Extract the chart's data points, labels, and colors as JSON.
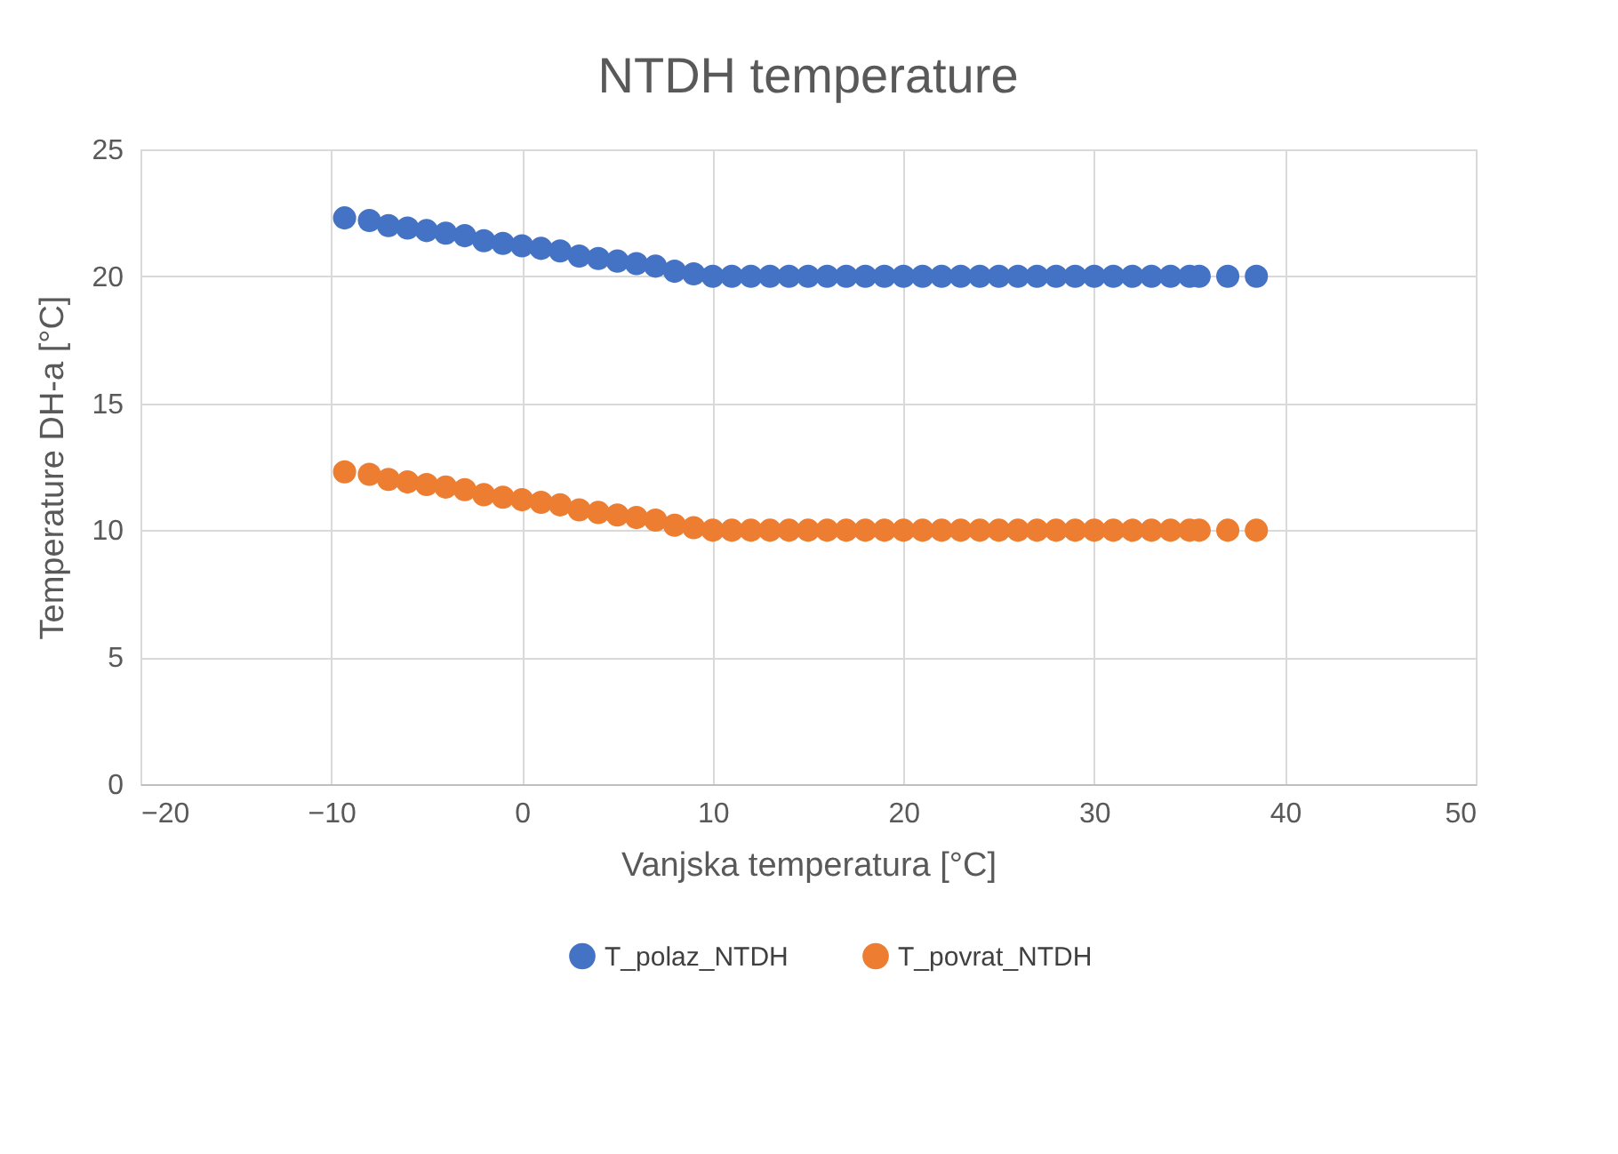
{
  "chart_data": {
    "type": "scatter",
    "title": "NTDH temperature",
    "xlabel": "Vanjska temperatura [°C]",
    "ylabel": "Temperature DH-a [°C]",
    "x": [
      -9.3,
      -8,
      -7,
      -6,
      -5,
      -4,
      -3,
      -2,
      -1,
      0,
      1,
      2,
      3,
      4,
      5,
      6,
      7,
      8,
      9,
      10,
      11,
      12,
      13,
      14,
      15,
      16,
      17,
      18,
      19,
      20,
      21,
      22,
      23,
      24,
      25,
      26,
      27,
      28,
      29,
      30,
      31,
      32,
      33,
      34,
      35,
      35.5,
      37,
      38.5
    ],
    "series": [
      {
        "name": "T_polaz_NTDH",
        "color": "#4472c4",
        "values": [
          22.3,
          22.2,
          22.0,
          21.9,
          21.8,
          21.7,
          21.6,
          21.4,
          21.3,
          21.2,
          21.1,
          21.0,
          20.8,
          20.7,
          20.6,
          20.5,
          20.4,
          20.2,
          20.1,
          20.0,
          20,
          20,
          20,
          20,
          20,
          20,
          20,
          20,
          20,
          20,
          20,
          20,
          20,
          20,
          20,
          20,
          20,
          20,
          20,
          20,
          20,
          20,
          20,
          20,
          20,
          20,
          20,
          20
        ]
      },
      {
        "name": "T_povrat_NTDH",
        "color": "#ed7d31",
        "values": [
          12.3,
          12.2,
          12.0,
          11.9,
          11.8,
          11.7,
          11.6,
          11.4,
          11.3,
          11.2,
          11.1,
          11.0,
          10.8,
          10.7,
          10.6,
          10.5,
          10.4,
          10.2,
          10.1,
          10.0,
          10,
          10,
          10,
          10,
          10,
          10,
          10,
          10,
          10,
          10,
          10,
          10,
          10,
          10,
          10,
          10,
          10,
          10,
          10,
          10,
          10,
          10,
          10,
          10,
          10,
          10,
          10,
          10
        ]
      }
    ],
    "xlim": [
      -20,
      50
    ],
    "xticks": [
      -20,
      -10,
      0,
      10,
      20,
      30,
      40,
      50
    ],
    "ylim": [
      0,
      25
    ],
    "yticks": [
      0,
      5,
      10,
      15,
      20,
      25
    ],
    "grid": true,
    "legend": "bottom",
    "marker": "circle"
  }
}
